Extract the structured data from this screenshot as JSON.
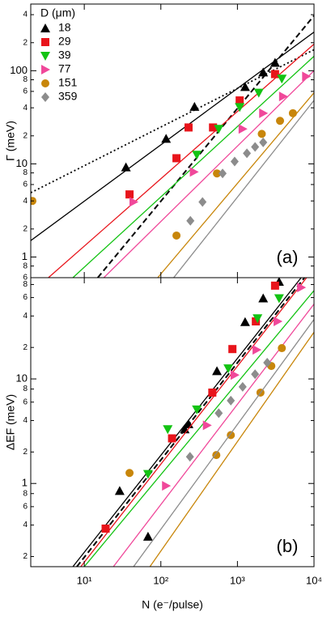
{
  "chart_data": [
    {
      "type": "scatter",
      "log_x": true,
      "log_y": true,
      "ylabel": "Γ (meV)",
      "panel_label": "(a)",
      "legend_title": "D (μm)",
      "legend": "upper left",
      "xlim": [
        2,
        10000
      ],
      "xticks": [
        10,
        100,
        1000,
        10000
      ],
      "ylim": [
        0.6,
        520
      ],
      "yticks": [
        {
          "value": 0.6,
          "label": "6"
        },
        {
          "value": 0.8,
          "label": "8"
        },
        1,
        2,
        4,
        6,
        8,
        10,
        {
          "value": 20,
          "label": "2"
        },
        {
          "value": 40,
          "label": "4"
        },
        {
          "value": 60,
          "label": "6"
        },
        {
          "value": 80,
          "label": "8"
        },
        100,
        {
          "value": 200,
          "label": "2"
        },
        {
          "value": 400,
          "label": "4"
        }
      ],
      "series": [
        {
          "name": "18",
          "color": "#000000",
          "marker": "triangle-up",
          "x": [
            35,
            117,
            275,
            1260,
            2170,
            3100
          ],
          "values": [
            9.2,
            18.6,
            41,
            67,
            96,
            122
          ],
          "fit": {
            "x": [
              2,
              10000
            ],
            "y": [
              1.5,
              260
            ]
          }
        },
        {
          "name": "29",
          "color": "#e8141b",
          "marker": "square",
          "x": [
            39,
            160,
            230,
            480,
            1070,
            3100
          ],
          "values": [
            4.7,
            11.5,
            24.6,
            24.6,
            48,
            92
          ],
          "fit": {
            "x": [
              3.4,
              10000
            ],
            "y": [
              0.6,
              193
            ]
          }
        },
        {
          "name": "39",
          "color": "#13c313",
          "marker": "triangle-down",
          "x": [
            295,
            570,
            1070,
            1900,
            3800
          ],
          "values": [
            12.5,
            23.7,
            40.6,
            58,
            82
          ],
          "fit": {
            "x": [
              7.1,
              10000
            ],
            "y": [
              0.6,
              143
            ]
          }
        },
        {
          "name": "77",
          "color": "#f0489a",
          "marker": "triangle-right",
          "x": [
            44,
            270,
            1170,
            2170,
            3950,
            7900
          ],
          "values": [
            3.9,
            8.2,
            23.7,
            35,
            53,
            87
          ],
          "fit": {
            "x": [
              18,
              10000
            ],
            "y": [
              0.6,
              100
            ]
          }
        },
        {
          "name": "151",
          "color": "#c8860a",
          "marker": "circle",
          "x": [
            2.1,
            160,
            540,
            2080,
            3600,
            5300
          ],
          "values": [
            4.0,
            1.7,
            7.9,
            21,
            29,
            35
          ],
          "fit": {
            "x": [
              91,
              10000
            ],
            "y": [
              0.6,
              58
            ]
          }
        },
        {
          "name": "359",
          "color": "#8c8c8c",
          "marker": "diamond",
          "x": [
            243,
            350,
            640,
            920,
            1330,
            1700,
            2170
          ],
          "values": [
            2.45,
            3.9,
            7.9,
            10.6,
            13,
            15.2,
            17
          ],
          "fit": {
            "x": [
              147,
              10000
            ],
            "y": [
              0.6,
              48
            ]
          }
        }
      ],
      "lines": [
        {
          "style": "dashed",
          "color": "#000000",
          "x": [
            15,
            10000
          ],
          "y": [
            0.6,
            390
          ]
        },
        {
          "style": "dotted",
          "color": "#000000",
          "x": [
            2,
            10000
          ],
          "y": [
            4.9,
            168
          ]
        }
      ]
    },
    {
      "type": "scatter",
      "log_x": true,
      "log_y": true,
      "ylabel": "ΔEF (meV)",
      "xlabel": "N (e⁻/pulse)",
      "panel_label": "(b)",
      "xlim": [
        2,
        10000
      ],
      "xticks": [
        {
          "value": 10,
          "label": "10¹"
        },
        {
          "value": 100,
          "label": "10²"
        },
        {
          "value": 1000,
          "label": "10³"
        },
        {
          "value": 10000,
          "label": "10⁴"
        }
      ],
      "ylim": [
        0.16,
        93
      ],
      "yticks": [
        {
          "value": 0.2,
          "label": "2"
        },
        {
          "value": 0.4,
          "label": "4"
        },
        {
          "value": 0.6,
          "label": "6"
        },
        {
          "value": 0.8,
          "label": "8"
        },
        1,
        2,
        4,
        6,
        8,
        10,
        {
          "value": 20,
          "label": "2"
        },
        {
          "value": 40,
          "label": "4"
        },
        {
          "value": 60,
          "label": "6"
        },
        {
          "value": 80,
          "label": "8"
        }
      ],
      "series": [
        {
          "color": "#000000",
          "marker": "triangle-up",
          "x": [
            29,
            68,
            205,
            230,
            540,
            1260,
            2170,
            3500
          ],
          "values": [
            0.85,
            0.31,
            3.3,
            3.7,
            11.9,
            35,
            59,
            85
          ],
          "fit": {
            "x": [
              7.1,
              6800
            ],
            "y": [
              0.16,
              93
            ]
          }
        },
        {
          "color": "#e8141b",
          "marker": "square",
          "x": [
            19,
            140,
            470,
            860,
            1740,
            3100
          ],
          "values": [
            0.37,
            2.7,
            7.4,
            19.3,
            35.5,
            78
          ],
          "fit": {
            "x": [
              9,
              8000
            ],
            "y": [
              0.16,
              93
            ]
          }
        },
        {
          "color": "#13c313",
          "marker": "triangle-down",
          "x": [
            68,
            123,
            295,
            760,
            1830,
            3500
          ],
          "values": [
            1.23,
            3.3,
            5.1,
            12.6,
            38,
            59
          ],
          "fit": {
            "x": [
              10,
              10000
            ],
            "y": [
              0.16,
              70
            ]
          }
        },
        {
          "color": "#f0489a",
          "marker": "triangle-right",
          "x": [
            117,
            400,
            920,
            1780,
            3350,
            6800
          ],
          "values": [
            0.95,
            3.6,
            10.9,
            19,
            35.5,
            75
          ],
          "fit": {
            "x": [
              24,
              10000
            ],
            "y": [
              0.16,
              52
            ]
          }
        },
        {
          "color": "#c8860a",
          "marker": "circle",
          "x": [
            39,
            530,
            820,
            2000,
            2770,
            3800
          ],
          "values": [
            1.26,
            1.87,
            2.9,
            7.4,
            13.3,
            19.7
          ],
          "fit": {
            "x": [
              72,
              10000
            ],
            "y": [
              0.16,
              28
            ]
          }
        },
        {
          "color": "#8c8c8c",
          "marker": "diamond",
          "x": [
            240,
            570,
            820,
            1170,
            1700,
            2450
          ],
          "values": [
            1.8,
            4.7,
            6.2,
            8.4,
            11.1,
            14.3
          ],
          "fit": {
            "x": [
              44,
              10000
            ],
            "y": [
              0.16,
              37
            ]
          }
        }
      ],
      "lines": [
        {
          "style": "dashed",
          "color": "#000000",
          "x": [
            8,
            7500
          ],
          "y": [
            0.16,
            93
          ]
        }
      ]
    }
  ]
}
